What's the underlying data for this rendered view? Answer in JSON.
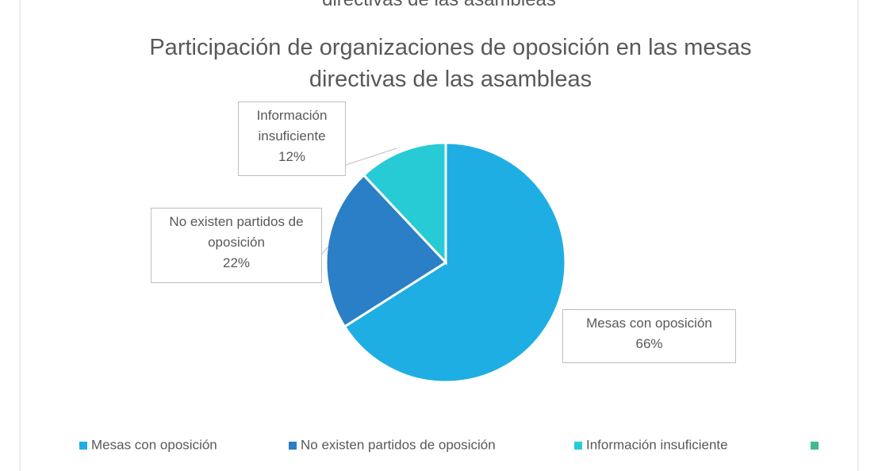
{
  "clipped_heading": "directivas de las asambleas",
  "chart_data": {
    "type": "pie",
    "title": "Participación de organizaciones de oposición en las mesas directivas de las asambleas",
    "categories": [
      "Mesas con oposición",
      "No existen partidos de oposición",
      "Información insuficiente",
      null
    ],
    "values": [
      66,
      22,
      12,
      null
    ],
    "value_labels": [
      "66%",
      "22%",
      "12%",
      null
    ],
    "colors": [
      "#1faee3",
      "#2a7fc6",
      "#27cbd6",
      "#3dbb8e"
    ],
    "legend": "bottom"
  }
}
